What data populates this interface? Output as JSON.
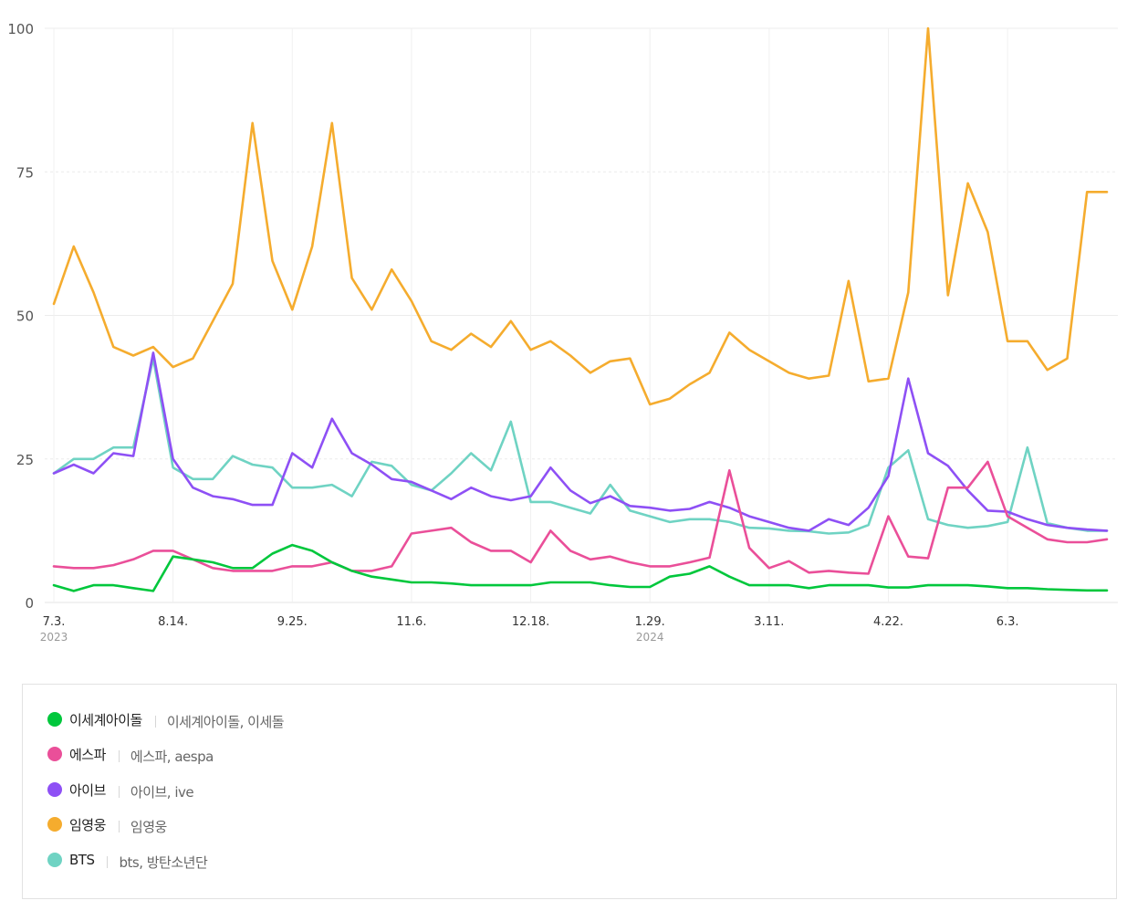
{
  "chart_data": {
    "type": "line",
    "ylim": [
      0,
      100
    ],
    "yticks": [
      0,
      25,
      50,
      75,
      100
    ],
    "x_count": 54,
    "x_ticks": [
      {
        "index": 0,
        "label": "7.3.",
        "year": "2023"
      },
      {
        "index": 6,
        "label": "8.14.",
        "year": ""
      },
      {
        "index": 12,
        "label": "9.25.",
        "year": ""
      },
      {
        "index": 18,
        "label": "11.6.",
        "year": ""
      },
      {
        "index": 24,
        "label": "12.18.",
        "year": ""
      },
      {
        "index": 30,
        "label": "1.29.",
        "year": "2024"
      },
      {
        "index": 36,
        "label": "3.11.",
        "year": ""
      },
      {
        "index": 42,
        "label": "4.22.",
        "year": ""
      },
      {
        "index": 48,
        "label": "6.3.",
        "year": ""
      }
    ],
    "series": [
      {
        "name": "이세계아이돌",
        "keywords": "이세계아이돌, 이세돌",
        "color": "#00c73c",
        "values": [
          3,
          2,
          3,
          3,
          2.5,
          2,
          8,
          7.5,
          7,
          6,
          6,
          8.5,
          10,
          9,
          7,
          5.5,
          4.5,
          4,
          3.5,
          3.5,
          3.3,
          3,
          3,
          3,
          3,
          3.5,
          3.5,
          3.5,
          3,
          2.7,
          2.7,
          4.5,
          5,
          6.3,
          4.5,
          3,
          3,
          3,
          2.5,
          3,
          3,
          3,
          2.6,
          2.6,
          3,
          3,
          3,
          2.8,
          2.5,
          2.5,
          2.3,
          2.2,
          2.1,
          2.1
        ]
      },
      {
        "name": "에스파",
        "keywords": "에스파, aespa",
        "color": "#ea4f99",
        "values": [
          6.3,
          6,
          6,
          6.5,
          7.5,
          9,
          9,
          7.5,
          6,
          5.5,
          5.5,
          5.5,
          6.3,
          6.3,
          7,
          5.5,
          5.5,
          6.3,
          12,
          12.5,
          13,
          10.5,
          9,
          9,
          7,
          12.5,
          9,
          7.5,
          8,
          7,
          6.3,
          6.3,
          7,
          7.8,
          23,
          9.5,
          6,
          7.2,
          5.2,
          5.5,
          5.2,
          5,
          15,
          8,
          7.7,
          20,
          20,
          24.5,
          15,
          13,
          11,
          10.5,
          10.5,
          11
        ]
      },
      {
        "name": "아이브",
        "keywords": "아이브, ive",
        "color": "#8e50f5",
        "values": [
          22.5,
          24,
          22.5,
          26,
          25.5,
          43.5,
          25,
          20,
          18.5,
          18,
          17,
          17,
          26,
          23.5,
          32,
          26,
          24,
          21.5,
          21,
          19.5,
          18,
          20,
          18.5,
          17.8,
          18.5,
          23.5,
          19.5,
          17.3,
          18.5,
          16.8,
          16.5,
          16,
          16.3,
          17.5,
          16.5,
          15,
          14,
          13,
          12.5,
          14.5,
          13.5,
          16.5,
          22,
          39,
          26,
          23.8,
          19.5,
          16,
          15.8,
          14.5,
          13.5,
          13,
          12.7,
          12.5
        ]
      },
      {
        "name": "임영웅",
        "keywords": "임영웅",
        "color": "#f5ac2e",
        "values": [
          52,
          62,
          54,
          44.5,
          43,
          44.5,
          41,
          42.5,
          49,
          55.5,
          83.5,
          59.5,
          51,
          62,
          83.5,
          56.5,
          51,
          58,
          52.5,
          45.5,
          44,
          46.8,
          44.5,
          49,
          44,
          45.5,
          43,
          40,
          42,
          42.5,
          34.5,
          35.5,
          38,
          40,
          47,
          44,
          42,
          40,
          39,
          39.5,
          56,
          38.5,
          39,
          54,
          100,
          53.5,
          73,
          64.5,
          45.5,
          45.5,
          40.5,
          42.5,
          71.5,
          71.5
        ]
      },
      {
        "name": "BTS",
        "keywords": "bts, 방탄소년단",
        "color": "#6fd3c3",
        "values": [
          22.5,
          25,
          25,
          27,
          27,
          42.5,
          23.5,
          21.5,
          21.5,
          25.5,
          24,
          23.5,
          20,
          20,
          20.5,
          18.5,
          24.5,
          23.8,
          20.5,
          19.5,
          22.5,
          26,
          23,
          31.5,
          17.5,
          17.5,
          16.5,
          15.5,
          20.5,
          16,
          15,
          14,
          14.5,
          14.5,
          14,
          13,
          12.9,
          12.5,
          12.4,
          12,
          12.2,
          13.5,
          23.5,
          26.5,
          14.5,
          13.5,
          13,
          13.3,
          14,
          27,
          13.8,
          13,
          12.5,
          12.5
        ]
      }
    ]
  }
}
